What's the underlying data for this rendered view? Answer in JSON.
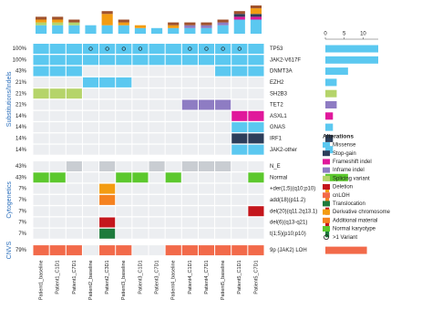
{
  "chart_data": {
    "type": "oncoprint",
    "columns": [
      "Patient1_baseline",
      "Patient1_C1D1",
      "Patient1_C7D1",
      "Patient2_baseline",
      "Patient2_C3D1",
      "Patient3_baseline",
      "Patient3_C1D1",
      "Patient3_C7D1",
      "Patient4_baseline",
      "Patient4_C1D1",
      "Patient4_C7D1",
      "Patient5_baseline",
      "Patient5_C1D1",
      "Patient5_C7D1"
    ],
    "sections": [
      {
        "label": "Substitutions/Indels",
        "rows": [
          {
            "name": "TP53",
            "percent": "100%",
            "color": "#5bc8f0",
            "count": 14,
            "cells": [
              1,
              1,
              1,
              1,
              1,
              1,
              1,
              1,
              1,
              1,
              1,
              1,
              1,
              1
            ],
            "circles": [
              0,
              0,
              0,
              1,
              1,
              1,
              1,
              0,
              0,
              1,
              1,
              1,
              1,
              0
            ]
          },
          {
            "name": "JAK2-V617F",
            "percent": "100%",
            "color": "#5bc8f0",
            "count": 14,
            "cells": [
              1,
              1,
              1,
              1,
              1,
              1,
              1,
              1,
              1,
              1,
              1,
              1,
              1,
              1
            ]
          },
          {
            "name": "DNMT3A",
            "percent": "43%",
            "color": "#5bc8f0",
            "count": 6,
            "cells": [
              1,
              1,
              1,
              0,
              0,
              0,
              0,
              0,
              0,
              0,
              0,
              1,
              1,
              1
            ]
          },
          {
            "name": "EZH2",
            "percent": "21%",
            "color": "#5bc8f0",
            "count": 3,
            "cells": [
              0,
              0,
              0,
              1,
              1,
              1,
              0,
              0,
              0,
              0,
              0,
              0,
              0,
              0
            ]
          },
          {
            "name": "SH2B3",
            "percent": "21%",
            "color": "#b5d46a",
            "count": 3,
            "cells": [
              1,
              1,
              1,
              0,
              0,
              0,
              0,
              0,
              0,
              0,
              0,
              0,
              0,
              0
            ]
          },
          {
            "name": "TET2",
            "percent": "21%",
            "color": "#8e7cc3",
            "count": 3,
            "cells": [
              0,
              0,
              0,
              0,
              0,
              0,
              0,
              0,
              0,
              1,
              1,
              1,
              0,
              0
            ]
          },
          {
            "name": "ASXL1",
            "percent": "14%",
            "color": "#e0189b",
            "count": 2,
            "cells": [
              0,
              0,
              0,
              0,
              0,
              0,
              0,
              0,
              0,
              0,
              0,
              0,
              1,
              1
            ]
          },
          {
            "name": "GNAS",
            "percent": "14%",
            "color": "#5bc8f0",
            "count": 2,
            "cells": [
              0,
              0,
              0,
              0,
              0,
              0,
              0,
              0,
              0,
              0,
              0,
              0,
              1,
              1
            ]
          },
          {
            "name": "IRF1",
            "percent": "14%",
            "color": "#2d3e5a",
            "count": 2,
            "cells": [
              0,
              0,
              0,
              0,
              0,
              0,
              0,
              0,
              0,
              0,
              0,
              0,
              1,
              1
            ]
          },
          {
            "name": "JAK2-other",
            "percent": "14%",
            "color": "#5bc8f0",
            "count": 2,
            "cells": [
              0,
              0,
              0,
              0,
              0,
              0,
              0,
              0,
              0,
              0,
              0,
              0,
              1,
              1
            ]
          }
        ]
      },
      {
        "label": "Cytogenetics",
        "rows": [
          {
            "name": "N_E",
            "percent": "43%",
            "color": "#c9cdd2",
            "cells": [
              0,
              0,
              1,
              0,
              1,
              0,
              0,
              1,
              0,
              1,
              1,
              1,
              0,
              0
            ]
          },
          {
            "name": "Normal",
            "percent": "43%",
            "color": "#5cc82d",
            "count": 6,
            "cells": [
              1,
              1,
              0,
              0,
              0,
              1,
              1,
              0,
              1,
              0,
              0,
              0,
              0,
              1
            ]
          },
          {
            "name": "+der(1;5)(q10;p10)",
            "percent": "7%",
            "color": "#f39c12",
            "count": 1,
            "cells": [
              0,
              0,
              0,
              0,
              1,
              0,
              0,
              0,
              0,
              0,
              0,
              0,
              0,
              0
            ]
          },
          {
            "name": "add(18)(p11.2)",
            "percent": "7%",
            "color": "#f58220",
            "count": 1,
            "cells": [
              0,
              0,
              0,
              0,
              1,
              0,
              0,
              0,
              0,
              0,
              0,
              0,
              0,
              0
            ]
          },
          {
            "name": "del(20)(q11.2q13.1)",
            "percent": "7%",
            "color": "#c4161c",
            "count": 1,
            "cells": [
              0,
              0,
              0,
              0,
              0,
              0,
              0,
              0,
              0,
              0,
              0,
              0,
              0,
              1
            ]
          },
          {
            "name": "del(6)(q13-q21)",
            "percent": "7%",
            "color": "#c4161c",
            "count": 1,
            "cells": [
              0,
              0,
              0,
              0,
              1,
              0,
              0,
              0,
              0,
              0,
              0,
              0,
              0,
              0
            ]
          },
          {
            "name": "t(1;5)(p10;p10)",
            "percent": "7%",
            "color": "#1e7b3c",
            "count": 1,
            "cells": [
              0,
              0,
              0,
              0,
              1,
              0,
              0,
              0,
              0,
              0,
              0,
              0,
              0,
              0
            ]
          }
        ]
      },
      {
        "label": "CNVS",
        "rows": [
          {
            "name": "9p (JAK2) LOH",
            "percent": "79%",
            "color": "#f26a4a",
            "count": 11,
            "cells": [
              1,
              1,
              1,
              0,
              1,
              1,
              0,
              0,
              1,
              1,
              1,
              1,
              1,
              1
            ]
          }
        ]
      }
    ],
    "top_bars": {
      "ylim": [
        0,
        10
      ],
      "series": [
        {
          "color": "#5bc8f0",
          "values": [
            3,
            3,
            3,
            3,
            3,
            3,
            2,
            2,
            2,
            2,
            2,
            3,
            5,
            5
          ]
        },
        {
          "color": "#b5d46a",
          "values": [
            1,
            1,
            1,
            0,
            0,
            0,
            0,
            0,
            0,
            0,
            0,
            0,
            0,
            0
          ]
        },
        {
          "color": "#8e7cc3",
          "values": [
            0,
            0,
            0,
            0,
            0,
            0,
            0,
            0,
            0,
            1,
            1,
            1,
            0,
            0
          ]
        },
        {
          "color": "#e0189b",
          "values": [
            0,
            0,
            0,
            0,
            0,
            0,
            0,
            0,
            0,
            0,
            0,
            0,
            1,
            1
          ]
        },
        {
          "color": "#2d3e5a",
          "values": [
            0,
            0,
            0,
            0,
            0,
            0,
            0,
            0,
            0,
            0,
            0,
            0,
            1,
            1
          ]
        },
        {
          "color": "#f39c12",
          "values": [
            1,
            1,
            0,
            0,
            4,
            1,
            1,
            0,
            1,
            0,
            0,
            0,
            0,
            2
          ]
        },
        {
          "color": "#a0522d",
          "values": [
            1,
            1,
            1,
            0,
            1,
            1,
            0,
            0,
            1,
            1,
            1,
            1,
            1,
            1
          ]
        }
      ]
    },
    "row_bars": {
      "xlim": [
        0,
        14
      ],
      "xticks": [
        0,
        5,
        10
      ]
    },
    "legend": {
      "title": "Alterations",
      "items": [
        {
          "name": "Missense",
          "color": "#5bc8f0"
        },
        {
          "name": "Stop-gain",
          "color": "#2d3e5a"
        },
        {
          "name": "Frameshift indel",
          "color": "#e0189b"
        },
        {
          "name": "Inframe indel",
          "color": "#8e7cc3"
        },
        {
          "name": "Splicing variant",
          "color": "#b5d46a"
        },
        {
          "name": "Deletion",
          "color": "#c4161c"
        },
        {
          "name": "cnLOH",
          "color": "#f26a4a"
        },
        {
          "name": "Translocation",
          "color": "#1e7b3c"
        },
        {
          "name": "Derivative chromosome",
          "color": "#f39c12"
        },
        {
          "name": "Additional material",
          "color": "#f58220"
        },
        {
          "name": "Normal karyotype",
          "color": "#5cc82d"
        },
        {
          "name": ">1 Variant",
          "marker": "circle"
        }
      ]
    }
  }
}
